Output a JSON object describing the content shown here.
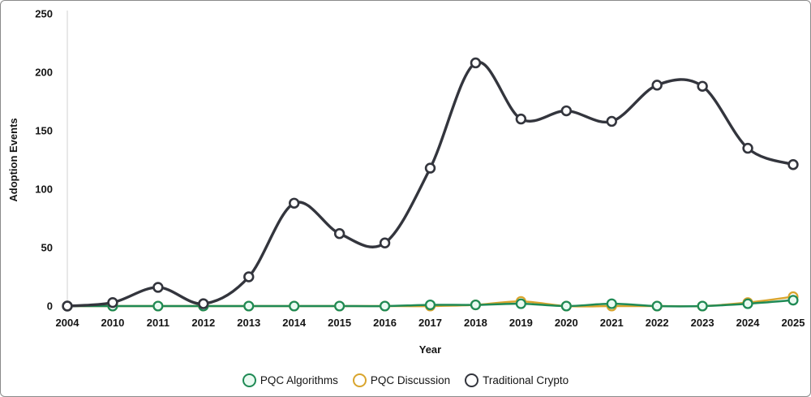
{
  "frame": {
    "background_color": "#ffffff",
    "border_color": "#8a8a8a"
  },
  "chart_data": {
    "type": "line",
    "title": "",
    "xlabel": "Year",
    "ylabel": "Adoption Events",
    "x": [
      "2004",
      "2010",
      "2011",
      "2012",
      "2013",
      "2014",
      "2015",
      "2016",
      "2017",
      "2018",
      "2019",
      "2020",
      "2021",
      "2022",
      "2023",
      "2024",
      "2025"
    ],
    "ylim": [
      0,
      250
    ],
    "yticks": [
      0,
      50,
      100,
      150,
      200,
      250
    ],
    "grid": false,
    "line_style": "smooth-spline",
    "marker_style": "open-circle",
    "legend_position": "bottom-center",
    "axis_line_color": "#d9d9d9",
    "series": [
      {
        "name": "PQC Algorithms",
        "color": "#1f8a55",
        "marker_fill": "#eafaf1",
        "values": [
          0,
          0,
          0,
          0,
          0,
          0,
          0,
          0,
          1,
          1,
          2,
          0,
          2,
          0,
          0,
          2,
          5
        ]
      },
      {
        "name": "PQC Discussion",
        "color": "#d9a52e",
        "marker_fill": "#ffffff",
        "values": [
          0,
          0,
          0,
          0,
          0,
          0,
          0,
          0,
          0,
          1,
          4,
          0,
          0,
          0,
          0,
          3,
          8
        ]
      },
      {
        "name": "Traditional Crypto",
        "color": "#33353d",
        "marker_fill": "#ffffff",
        "values": [
          0,
          3,
          16,
          2,
          25,
          88,
          62,
          54,
          118,
          208,
          160,
          167,
          158,
          189,
          188,
          135,
          121
        ]
      }
    ]
  }
}
